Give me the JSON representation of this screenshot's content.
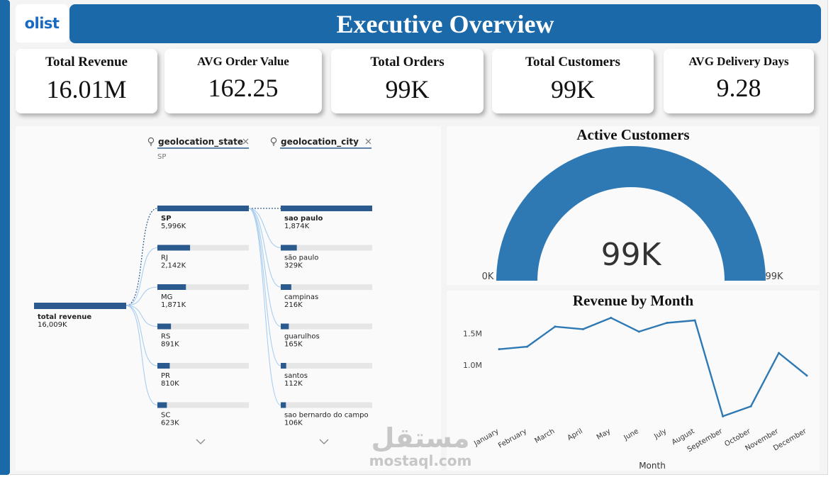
{
  "logo": {
    "text": "olist"
  },
  "header": {
    "title": "Executive Overview"
  },
  "kpis": [
    {
      "label": "Total Revenue",
      "value": "16.01M"
    },
    {
      "label": "AVG Order Value",
      "value": "162.25"
    },
    {
      "label": "Total Orders",
      "value": "99K"
    },
    {
      "label": "Total Customers",
      "value": "99K"
    },
    {
      "label": "AVG Delivery Days",
      "value": "9.28"
    }
  ],
  "decomposition_tree": {
    "root": {
      "label": "total revenue",
      "value": "16,009K",
      "amount": 16009
    },
    "levels": [
      {
        "field": "geolocation_state",
        "filter": "SP",
        "icon": "lightbulb-icon"
      },
      {
        "field": "geolocation_city",
        "filter": "",
        "icon": "lightbulb-icon"
      }
    ],
    "states": [
      {
        "label": "SP",
        "value": "5,996K",
        "amount": 5996,
        "selected": true
      },
      {
        "label": "RJ",
        "value": "2,142K",
        "amount": 2142
      },
      {
        "label": "MG",
        "value": "1,871K",
        "amount": 1871
      },
      {
        "label": "RS",
        "value": "891K",
        "amount": 891
      },
      {
        "label": "PR",
        "value": "810K",
        "amount": 810
      },
      {
        "label": "SC",
        "value": "623K",
        "amount": 623
      }
    ],
    "cities": [
      {
        "label": "sao paulo",
        "value": "1,874K",
        "amount": 1874,
        "selected": true
      },
      {
        "label": "são paulo",
        "value": "329K",
        "amount": 329
      },
      {
        "label": "campinas",
        "value": "216K",
        "amount": 216
      },
      {
        "label": "guarulhos",
        "value": "165K",
        "amount": 165
      },
      {
        "label": "santos",
        "value": "112K",
        "amount": 112
      },
      {
        "label": "sao bernardo do campo",
        "value": "106K",
        "amount": 106
      }
    ],
    "bar_color": "#2a5a8e",
    "track_color": "#e6e6e6"
  },
  "gauge": {
    "title": "Active Customers",
    "value_label": "99K",
    "min_label": "0K",
    "max_label": "99K",
    "value": 99,
    "min": 0,
    "max": 99,
    "color": "#2e79b4"
  },
  "chart_data": {
    "type": "line",
    "title": "Revenue by Month",
    "xlabel": "Month",
    "ylabel": "",
    "categories": [
      "January",
      "February",
      "March",
      "April",
      "May",
      "June",
      "July",
      "August",
      "September",
      "October",
      "November",
      "December"
    ],
    "series": [
      {
        "values": [
          1.25,
          1.29,
          1.61,
          1.57,
          1.75,
          1.53,
          1.67,
          1.71,
          0.18,
          0.34,
          1.19,
          0.83
        ]
      }
    ],
    "y_ticks": [
      1.0,
      1.5
    ],
    "y_tick_labels": [
      "1.0M",
      "1.5M"
    ],
    "ylim": [
      0.15,
      1.8
    ],
    "grid": false,
    "color": "#2e79b4"
  },
  "watermark": {
    "arabic": "مستقل",
    "latin": "mostaql.com"
  }
}
